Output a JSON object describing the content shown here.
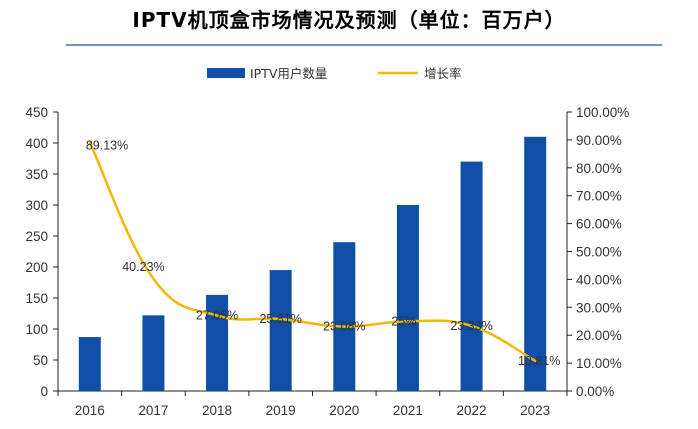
{
  "chart_data": {
    "type": "bar+line",
    "title": "IPTV机顶盒市场情况及预测（单位：百万户）",
    "categories": [
      "2016",
      "2017",
      "2018",
      "2019",
      "2020",
      "2021",
      "2022",
      "2023"
    ],
    "series": [
      {
        "name": "IPTV用户数量",
        "type": "bar",
        "axis": "left",
        "color": "#0F4FA8",
        "values": [
          87,
          122,
          155,
          195,
          240,
          300,
          370,
          410
        ]
      },
      {
        "name": "增长率",
        "type": "line",
        "axis": "right",
        "color": "#F5B800",
        "values": [
          89.13,
          40.23,
          27.05,
          25.81,
          23.08,
          25,
          23.33,
          10.81
        ],
        "labels": [
          "89.13%",
          "40.23%",
          "27.05%",
          "25.81%",
          "23.08%",
          "25%",
          "23.33%",
          "10.81%"
        ]
      }
    ],
    "y_left": {
      "min": 0,
      "max": 450,
      "step": 50,
      "ticks": [
        "0",
        "50",
        "100",
        "150",
        "200",
        "250",
        "300",
        "350",
        "400",
        "450"
      ]
    },
    "y_right": {
      "min": 0,
      "max": 100,
      "step": 10,
      "ticks": [
        "0.00%",
        "10.00%",
        "20.00%",
        "30.00%",
        "40.00%",
        "50.00%",
        "60.00%",
        "70.00%",
        "80.00%",
        "90.00%",
        "100.00%"
      ]
    },
    "legend_position": "top-center",
    "grid": false
  }
}
